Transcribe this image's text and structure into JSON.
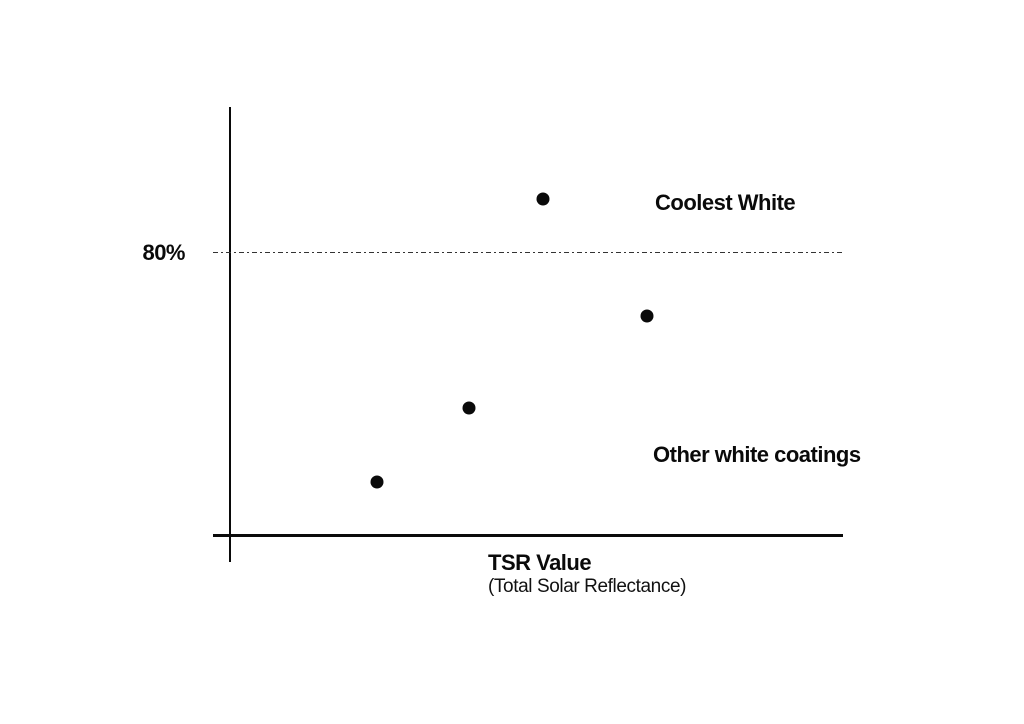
{
  "chart_data": {
    "type": "scatter",
    "title": "",
    "xlabel": "TSR Value",
    "xlabel_sub": "(Total Solar Reflectance)",
    "ylabel": "",
    "grid": false,
    "legend": "none",
    "axis_color": "#0a0a0a",
    "point_color": "#0a0a0a",
    "reference_line": {
      "label": "80%",
      "value": 80,
      "style": "dashed",
      "color": "#333333"
    },
    "points": [
      {
        "series": "Coolest White",
        "x_frac": 0.51,
        "y_percent": 95
      },
      {
        "series": "Other white coatings",
        "x_frac": 0.68,
        "y_percent": 62
      },
      {
        "series": "Other white coatings",
        "x_frac": 0.39,
        "y_percent": 36
      },
      {
        "series": "Other white coatings",
        "x_frac": 0.24,
        "y_percent": 15
      }
    ],
    "annotations": [
      {
        "text": "Coolest White"
      },
      {
        "text": "Other white coatings"
      }
    ]
  }
}
